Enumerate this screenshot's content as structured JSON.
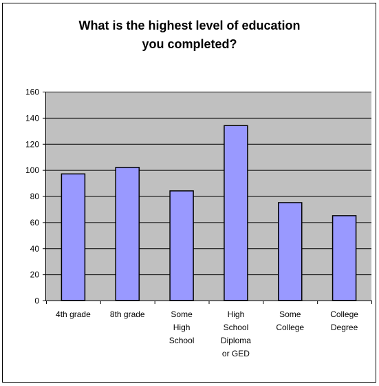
{
  "chart_data": {
    "type": "bar",
    "title": [
      "What is the highest level of education",
      "you completed?"
    ],
    "xlabel": "",
    "ylabel": "",
    "categories": [
      [
        "4th grade"
      ],
      [
        "8th grade"
      ],
      [
        "Some",
        "High",
        "School"
      ],
      [
        "High",
        "School",
        "Diploma",
        "or GED"
      ],
      [
        "Some",
        "College"
      ],
      [
        "College",
        "Degree"
      ]
    ],
    "values": [
      97,
      102,
      84,
      134,
      75,
      65
    ],
    "ylim": [
      0,
      160
    ],
    "yticks": [
      "0",
      "20",
      "40",
      "60",
      "80",
      "100",
      "120",
      "140",
      "160"
    ],
    "grid": true,
    "legend": "none",
    "colors": {
      "bar_fill": "#9999ff",
      "plot_background": "#c0c0c0",
      "gridline": "#000000"
    }
  }
}
